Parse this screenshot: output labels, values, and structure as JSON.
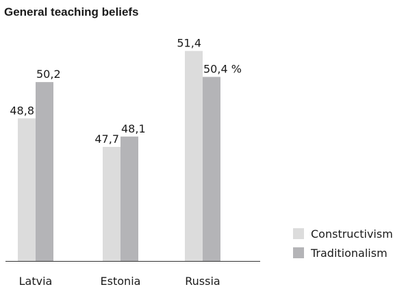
{
  "chart_data": {
    "type": "bar",
    "title": "General teaching beliefs",
    "categories": [
      "Latvia",
      "Estonia",
      "Russia"
    ],
    "series": [
      {
        "name": "Constructivism",
        "color": "#dcdcdc",
        "values": [
          48.8,
          47.7,
          51.4
        ],
        "labels": [
          "48,8",
          "47,7",
          "51,4"
        ]
      },
      {
        "name": "Traditionalism",
        "color": "#b4b4b7",
        "values": [
          50.2,
          48.1,
          50.4
        ],
        "labels": [
          "50,2",
          "48,1",
          "50,4 %"
        ]
      }
    ],
    "ylim": [
      43.3,
      51.6
    ],
    "xlabel": "",
    "ylabel": "",
    "grid": false,
    "legend": "bottom-right"
  }
}
